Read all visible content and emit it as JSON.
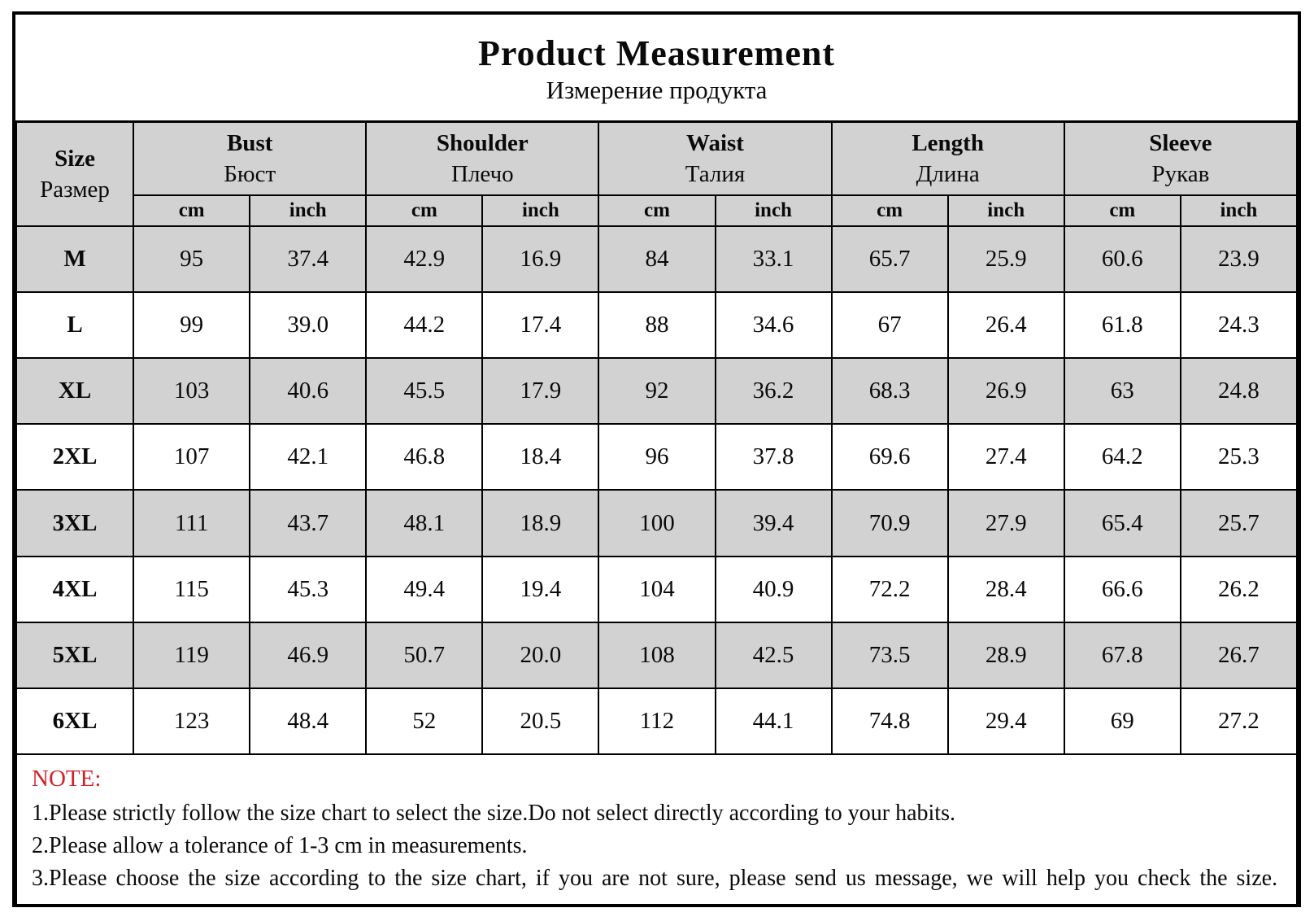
{
  "title": "Product Measurement",
  "subtitle": "Измерение продукта",
  "table": {
    "size_header": {
      "en": "Size",
      "ru": "Размер"
    },
    "columns": [
      {
        "en": "Bust",
        "ru": "Бюст"
      },
      {
        "en": "Shoulder",
        "ru": "Плечо"
      },
      {
        "en": "Waist",
        "ru": "Талия"
      },
      {
        "en": "Length",
        "ru": "Длина"
      },
      {
        "en": "Sleeve",
        "ru": "Рукав"
      }
    ],
    "units": {
      "cm": "cm",
      "inch": "inch"
    },
    "rows": [
      {
        "size": "M",
        "values": [
          "95",
          "37.4",
          "42.9",
          "16.9",
          "84",
          "33.1",
          "65.7",
          "25.9",
          "60.6",
          "23.9"
        ]
      },
      {
        "size": "L",
        "values": [
          "99",
          "39.0",
          "44.2",
          "17.4",
          "88",
          "34.6",
          "67",
          "26.4",
          "61.8",
          "24.3"
        ]
      },
      {
        "size": "XL",
        "values": [
          "103",
          "40.6",
          "45.5",
          "17.9",
          "92",
          "36.2",
          "68.3",
          "26.9",
          "63",
          "24.8"
        ]
      },
      {
        "size": "2XL",
        "values": [
          "107",
          "42.1",
          "46.8",
          "18.4",
          "96",
          "37.8",
          "69.6",
          "27.4",
          "64.2",
          "25.3"
        ]
      },
      {
        "size": "3XL",
        "values": [
          "111",
          "43.7",
          "48.1",
          "18.9",
          "100",
          "39.4",
          "70.9",
          "27.9",
          "65.4",
          "25.7"
        ]
      },
      {
        "size": "4XL",
        "values": [
          "115",
          "45.3",
          "49.4",
          "19.4",
          "104",
          "40.9",
          "72.2",
          "28.4",
          "66.6",
          "26.2"
        ]
      },
      {
        "size": "5XL",
        "values": [
          "119",
          "46.9",
          "50.7",
          "20.0",
          "108",
          "42.5",
          "73.5",
          "28.9",
          "67.8",
          "26.7"
        ]
      },
      {
        "size": "6XL",
        "values": [
          "123",
          "48.4",
          "52",
          "20.5",
          "112",
          "44.1",
          "74.8",
          "29.4",
          "69",
          "27.2"
        ]
      }
    ]
  },
  "note": {
    "label": "NOTE:",
    "label_color": "#d02229",
    "items": [
      "1.Please strictly follow the size chart to select the size.Do not select directly according to your habits.",
      "2.Please allow a tolerance of 1-3 cm in measurements.",
      "3.Please choose the size according to the size chart, if you are not sure, please send us message, we will help you check the size."
    ]
  },
  "colors": {
    "header_bg": "#d3d2d2",
    "row_alt_bg": "#d3d2d2",
    "border": "#000000",
    "note_red": "#d02229"
  }
}
